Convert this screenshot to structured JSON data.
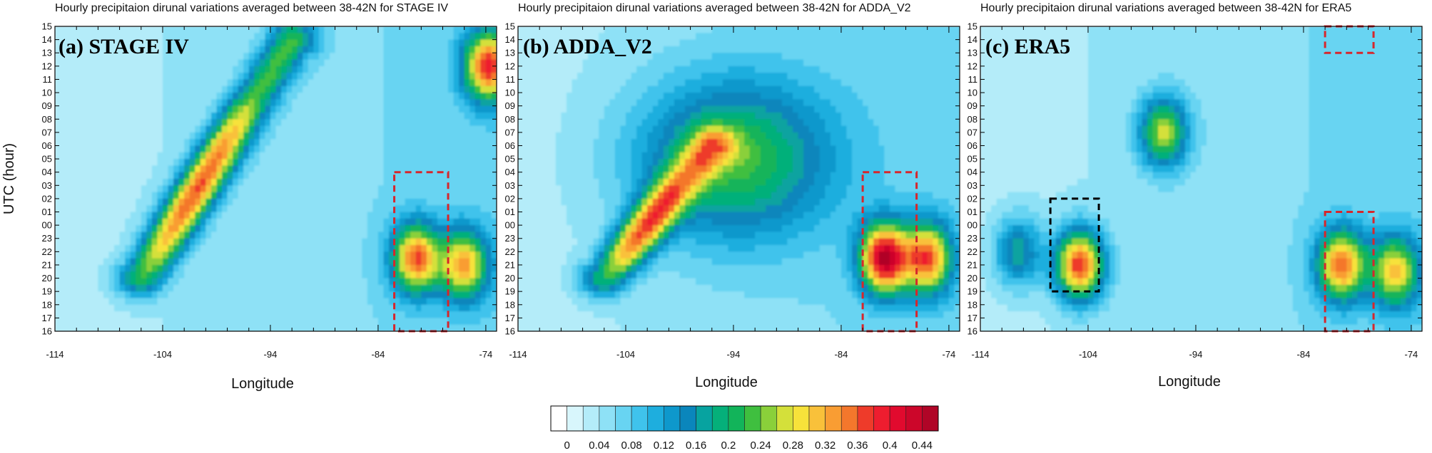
{
  "chart_data": {
    "type": "heatmap",
    "figure_kind": "hovmoller-contour",
    "xlabel": "Longitude",
    "ylabel": "UTC (hour)",
    "x_ticks": [
      -114,
      -104,
      -94,
      -84,
      -74
    ],
    "xlim": [
      -114,
      -73
    ],
    "y_ticks": [
      "15",
      "14",
      "13",
      "12",
      "11",
      "10",
      "09",
      "08",
      "07",
      "06",
      "05",
      "04",
      "03",
      "02",
      "01",
      "00",
      "23",
      "22",
      "21",
      "20",
      "19",
      "18",
      "17",
      "16"
    ],
    "colorbar": {
      "tick_labels": [
        "0",
        "0.04",
        "0.08",
        "0.12",
        "0.16",
        "0.2",
        "0.24",
        "0.28",
        "0.32",
        "0.36",
        "0.4",
        "0.44"
      ],
      "levels": [
        0,
        0.02,
        0.04,
        0.06,
        0.08,
        0.1,
        0.12,
        0.14,
        0.16,
        0.18,
        0.2,
        0.22,
        0.24,
        0.26,
        0.28,
        0.3,
        0.32,
        0.34,
        0.36,
        0.38,
        0.4,
        0.42,
        0.44,
        0.46
      ],
      "colors": [
        "#ffffff",
        "#d8f6fc",
        "#b4ecf9",
        "#8ee1f6",
        "#68d4f2",
        "#3fc3ec",
        "#1eaede",
        "#0e98cc",
        "#0a86bc",
        "#07a3a0",
        "#05b07a",
        "#12b45a",
        "#3fbf3f",
        "#8ad03a",
        "#d4e03a",
        "#f7e23a",
        "#f9c13a",
        "#f99d33",
        "#f4772c",
        "#ee3b2a",
        "#ee1d2f",
        "#e10a2e",
        "#cc062a",
        "#b00527"
      ]
    },
    "panels": [
      {
        "label": "(a) STAGE IV",
        "title": "Hourly precipitaion dirunal variations averaged between 38-42N for STAGE IV",
        "peak_value": 0.34,
        "features": [
          {
            "kind": "diagonal-band",
            "from": {
              "lon": -106,
              "utc": "20"
            },
            "to": {
              "lon": -92,
              "utc": "14"
            },
            "peak": 0.32
          },
          {
            "kind": "blob",
            "lon": -80.5,
            "utc": "21.5",
            "peak": 0.3
          },
          {
            "kind": "blob",
            "lon": -76,
            "utc": "21",
            "peak": 0.26
          },
          {
            "kind": "blob",
            "lon": -73.8,
            "utc": "12",
            "peak": 0.32
          }
        ],
        "highlight_boxes": [
          {
            "color": "#d6262c",
            "lon": [
              -82.5,
              -77.5
            ],
            "utc": [
              "04",
              "16"
            ]
          }
        ]
      },
      {
        "label": "(b) ADDA_V2",
        "title": "Hourly precipitaion dirunal variations averaged between 38-42N for ADDA_V2",
        "peak_value": 0.38,
        "features": [
          {
            "kind": "diagonal-band",
            "from": {
              "lon": -106,
              "utc": "20"
            },
            "to": {
              "lon": -96,
              "utc": "06"
            },
            "peak": 0.3
          },
          {
            "kind": "broad-band",
            "lon": -94,
            "utc": "05",
            "peak": 0.18
          },
          {
            "kind": "blob",
            "lon": -80,
            "utc": "21.5",
            "peak": 0.38
          },
          {
            "kind": "blob",
            "lon": -76,
            "utc": "21.5",
            "peak": 0.3
          }
        ],
        "highlight_boxes": [
          {
            "color": "#d6262c",
            "lon": [
              -82,
              -77
            ],
            "utc": [
              "04",
              "16"
            ]
          }
        ]
      },
      {
        "label": "(c) ERA5",
        "title": "Hourly precipitaion dirunal variations averaged between 38-42N for ERA5",
        "peak_value": 0.34,
        "features": [
          {
            "kind": "blob",
            "lon": -104.8,
            "utc": "21",
            "peak": 0.34
          },
          {
            "kind": "blob",
            "lon": -110.5,
            "utc": "22",
            "peak": 0.14
          },
          {
            "kind": "blob",
            "lon": -97,
            "utc": "07",
            "peak": 0.22
          },
          {
            "kind": "blob",
            "lon": -80.5,
            "utc": "21",
            "peak": 0.3
          },
          {
            "kind": "blob",
            "lon": -75.5,
            "utc": "20.5",
            "peak": 0.24
          }
        ],
        "highlight_boxes": [
          {
            "color": "#d6262c",
            "lon": [
              -82,
              -77.5
            ],
            "utc": [
              "01",
              "16"
            ]
          },
          {
            "color": "#d6262c",
            "lon": [
              -82,
              -77.5
            ],
            "utc": [
              "15",
              "13"
            ]
          },
          {
            "color": "#000000",
            "lon": [
              -107.5,
              -103
            ],
            "utc": [
              "02",
              "19"
            ]
          }
        ]
      }
    ]
  }
}
